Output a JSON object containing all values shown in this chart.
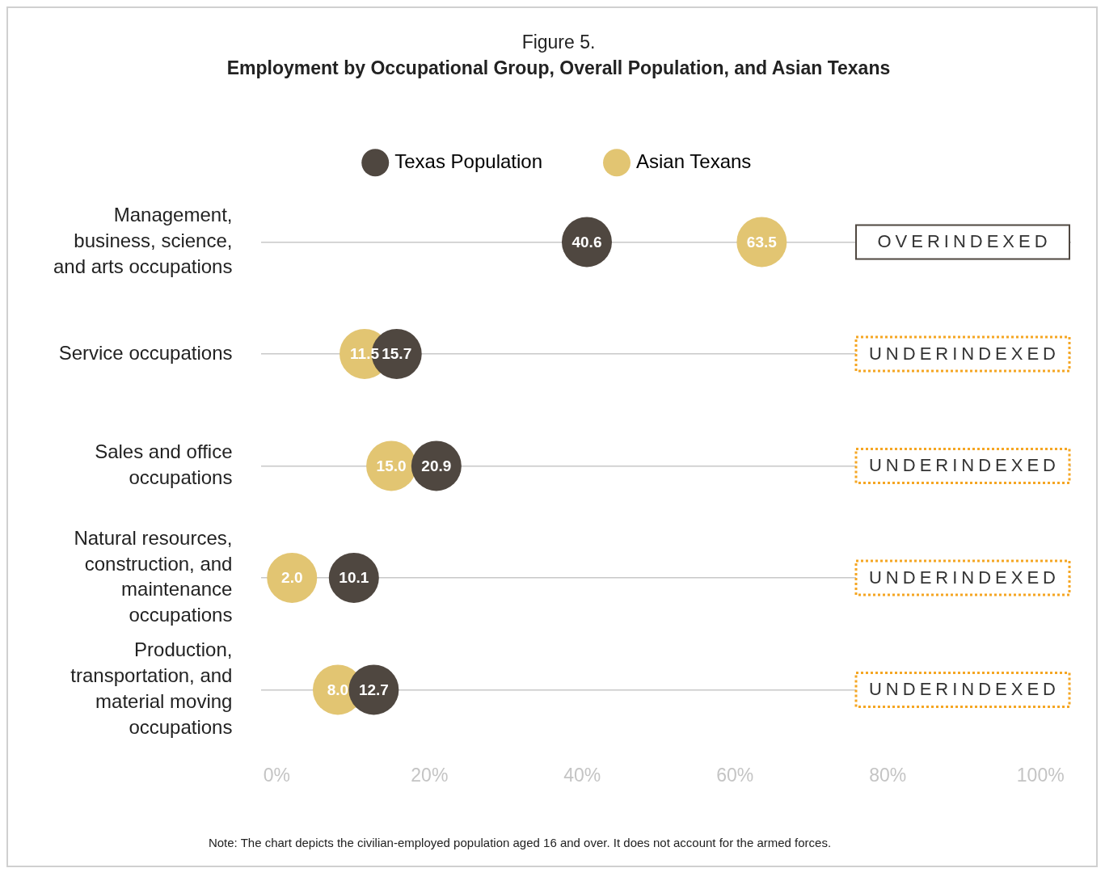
{
  "chart_data": {
    "type": "scatter",
    "title": "Figure 5.",
    "subtitle": "Employment by Occupational Group, Overall Population, and Asian Texans",
    "orientation": "horizontal",
    "marker": "circle",
    "legend": "top",
    "grid": "y",
    "categories": [
      "Management, business, science, and arts occupations",
      "Service occupations",
      "Sales and office occupations",
      "Natural resources, construction, and maintenance occupations",
      "Production, transportation, and material moving occupations"
    ],
    "series": [
      {
        "name": "Texas Population",
        "color": "#4f4740",
        "values": [
          40.6,
          15.7,
          20.9,
          10.1,
          12.7
        ],
        "value_labels": [
          "40.6",
          "15.7",
          "20.9",
          "10.1",
          "12.7"
        ]
      },
      {
        "name": "Asian Texans",
        "color": "#e2c572",
        "values": [
          63.5,
          11.5,
          15.0,
          2.0,
          8.0
        ],
        "value_labels": [
          "63.5",
          "11.5",
          "15.0",
          "2.0",
          "8.0"
        ]
      }
    ],
    "xlim": [
      -2,
      104
    ],
    "xticks": [
      {
        "value": 0,
        "label": "0%"
      },
      {
        "value": 20,
        "label": "20%"
      },
      {
        "value": 40,
        "label": "40%"
      },
      {
        "value": 60,
        "label": "60%"
      },
      {
        "value": 80,
        "label": "80%"
      },
      {
        "value": 100,
        "label": "100%"
      }
    ],
    "annotations": [
      "OVERINDEXED",
      "UNDERINDEXED",
      "UNDERINDEXED",
      "UNDERINDEXED",
      "UNDERINDEXED",
      "Note: The chart depicts the civilian-employed population aged 16 and over. It does not account for the armed forces."
    ]
  }
}
